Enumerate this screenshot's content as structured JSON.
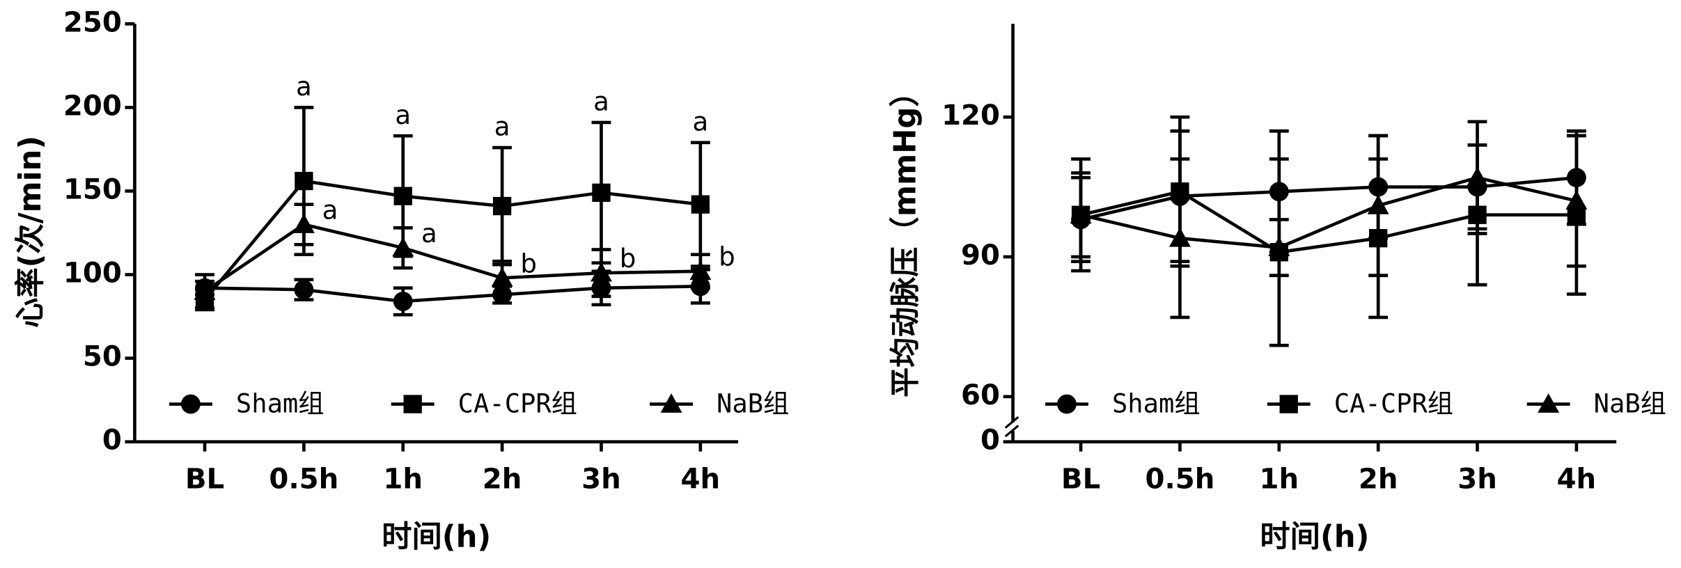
{
  "chart_data": [
    {
      "type": "line",
      "y_label": "心率(次/min)",
      "x_label": "时间(h)",
      "categories": [
        "BL",
        "0.5h",
        "1h",
        "2h",
        "3h",
        "4h"
      ],
      "ylim": [
        0,
        250
      ],
      "yticks": [
        0,
        50,
        100,
        150,
        200,
        250
      ],
      "series": [
        {
          "name": "Sham组",
          "color": "#000000",
          "marker": "circle",
          "values": [
            92,
            91,
            84,
            88,
            92,
            93
          ],
          "errors": [
            4,
            6,
            8,
            5,
            10,
            10
          ]
        },
        {
          "name": "CA-CPR组",
          "color": "#000000",
          "marker": "square",
          "values": [
            85,
            156,
            147,
            141,
            149,
            142
          ],
          "errors": [
            6,
            44,
            36,
            35,
            42,
            37
          ]
        },
        {
          "name": "NaB组",
          "color": "#000000",
          "marker": "triangle",
          "values": [
            90,
            130,
            116,
            98,
            101,
            102
          ],
          "errors": [
            10,
            12,
            12,
            10,
            14,
            10
          ]
        }
      ],
      "annotations": [
        {
          "text": "a",
          "series": 1,
          "index": 1
        },
        {
          "text": "a",
          "series": 1,
          "index": 2
        },
        {
          "text": "a",
          "series": 1,
          "index": 3
        },
        {
          "text": "a",
          "series": 1,
          "index": 4
        },
        {
          "text": "a",
          "series": 1,
          "index": 5
        },
        {
          "text": "a",
          "series": 2,
          "index": 1
        },
        {
          "text": "a",
          "series": 2,
          "index": 2
        },
        {
          "text": "b",
          "series": 2,
          "index": 3
        },
        {
          "text": "b",
          "series": 2,
          "index": 4
        },
        {
          "text": "b",
          "series": 2,
          "index": 5
        }
      ]
    },
    {
      "type": "line",
      "y_label": "平均动脉压（mmHg）",
      "x_label": "时间(h)",
      "categories": [
        "BL",
        "0.5h",
        "1h",
        "2h",
        "3h",
        "4h"
      ],
      "ylim": [
        54,
        140
      ],
      "yticks": [
        0,
        60,
        90,
        120
      ],
      "axis_break": true,
      "series": [
        {
          "name": "Sham组",
          "color": "#000000",
          "marker": "circle",
          "values": [
            98,
            103,
            104,
            105,
            105,
            107
          ],
          "errors": [
            9,
            14,
            13,
            11,
            9,
            10
          ]
        },
        {
          "name": "CA-CPR组",
          "color": "#000000",
          "marker": "square",
          "values": [
            99,
            104,
            91,
            94,
            99,
            99
          ],
          "errors": [
            9,
            16,
            20,
            17,
            15,
            17
          ]
        },
        {
          "name": "NaB组",
          "color": "#000000",
          "marker": "triangle",
          "values": [
            99,
            94,
            92,
            101,
            107,
            102
          ],
          "errors": [
            12,
            17,
            6,
            15,
            12,
            14
          ]
        }
      ]
    }
  ]
}
